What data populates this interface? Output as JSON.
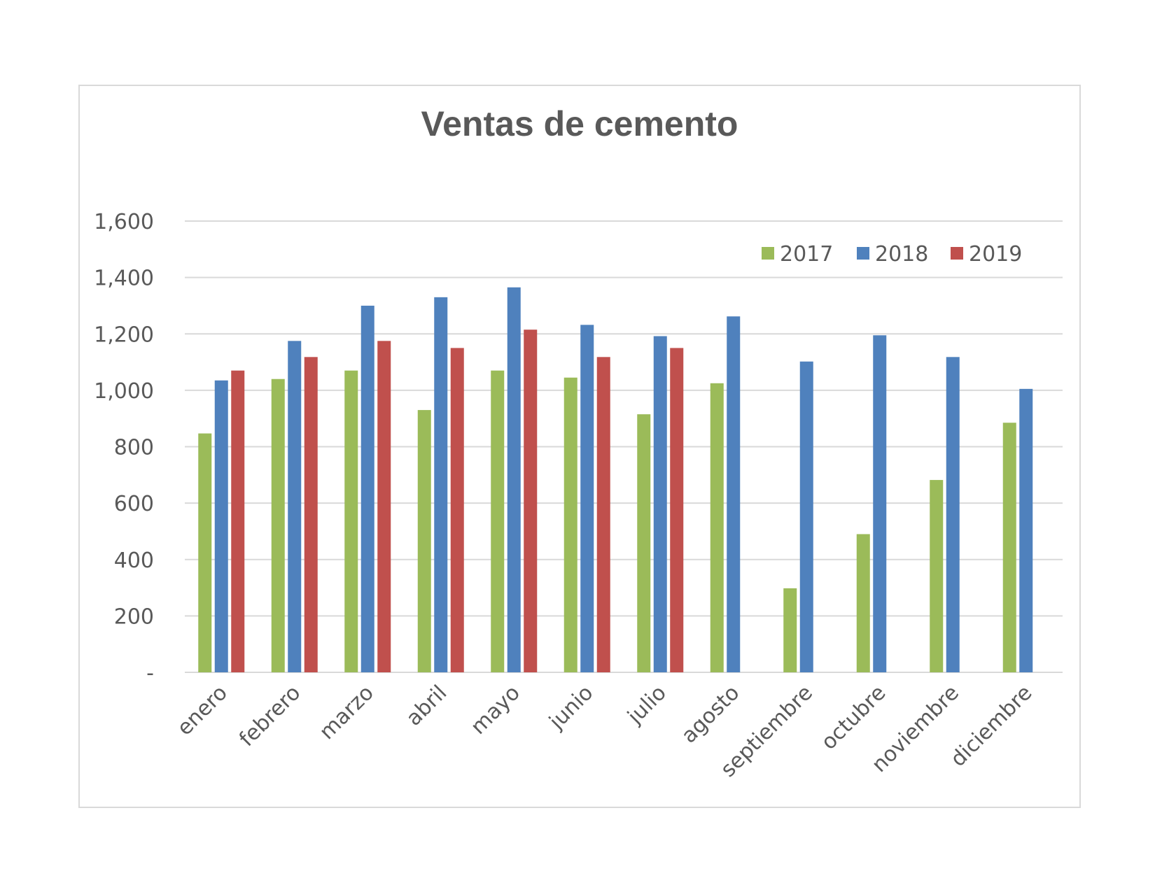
{
  "chart_data": {
    "type": "bar",
    "title": "Ventas de cemento",
    "xlabel": "",
    "ylabel": "",
    "ylim": [
      0,
      1600
    ],
    "yticks": [
      "-",
      "200",
      "400",
      "600",
      "800",
      "1,000",
      "1,200",
      "1,400",
      "1,600"
    ],
    "categories": [
      "enero",
      "febrero",
      "marzo",
      "abril",
      "mayo",
      "junio",
      "julio",
      "agosto",
      "septiembre",
      "octubre",
      "noviembre",
      "diciembre"
    ],
    "series": [
      {
        "name": "2017",
        "color": "#9bbb59",
        "values": [
          847,
          1040,
          1070,
          930,
          1070,
          1045,
          915,
          1025,
          298,
          490,
          682,
          885
        ]
      },
      {
        "name": "2018",
        "color": "#4f81bd",
        "values": [
          1035,
          1175,
          1300,
          1330,
          1365,
          1232,
          1192,
          1262,
          1102,
          1195,
          1118,
          1005
        ]
      },
      {
        "name": "2019",
        "color": "#c0504d",
        "values": [
          1070,
          1118,
          1175,
          1150,
          1215,
          1118,
          1150,
          null,
          null,
          null,
          null,
          null
        ]
      }
    ],
    "grid": true,
    "legend_position": "top-right"
  }
}
